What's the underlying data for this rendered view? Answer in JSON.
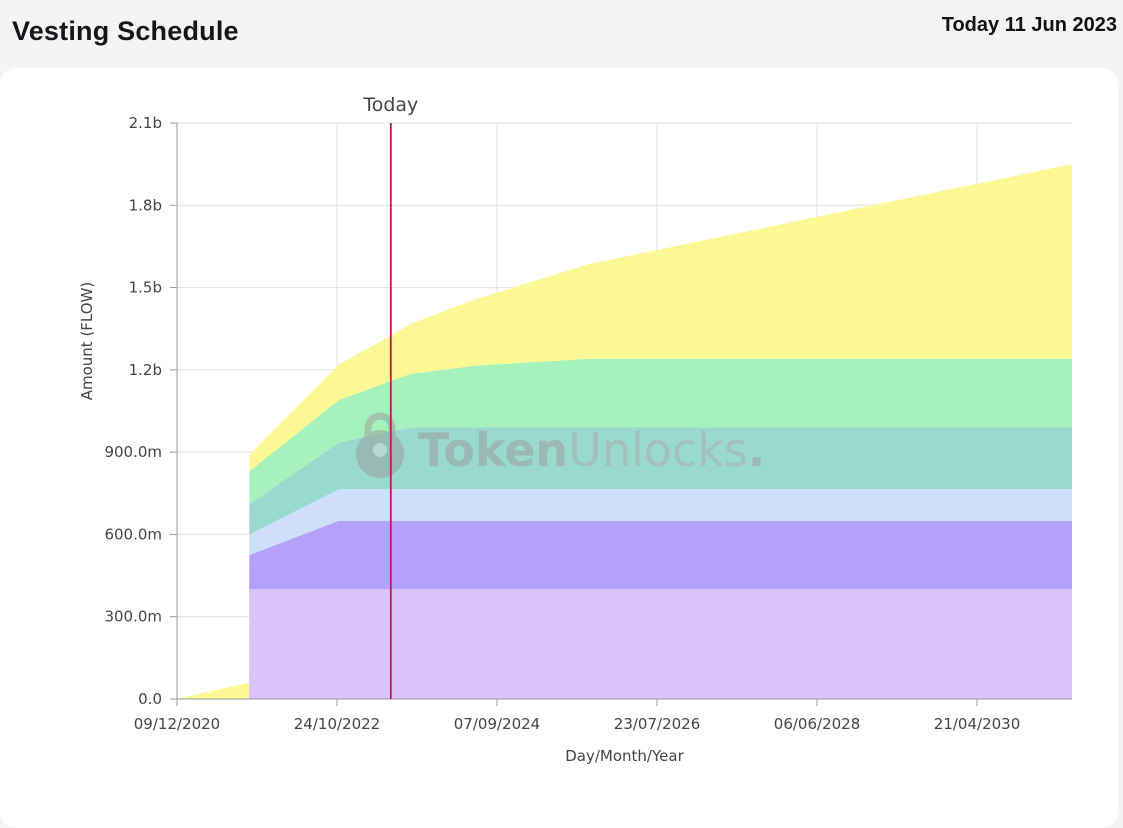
{
  "header": {
    "title": "Vesting Schedule",
    "today_text": "Today 11 Jun 2023"
  },
  "watermark": {
    "bold": "Token",
    "light": "Unlocks",
    "dot": ".",
    "icon": "lock-icon"
  },
  "chart_data": {
    "type": "area",
    "stacked": true,
    "title": "",
    "xlabel": "Day/Month/Year",
    "ylabel": "Amount (FLOW)",
    "ylim": [
      0,
      2100000000
    ],
    "yticks": [
      0,
      300000000,
      600000000,
      900000000,
      1200000000,
      1500000000,
      1800000000,
      2100000000
    ],
    "ytick_labels": [
      "0.0",
      "300.0m",
      "600.0m",
      "900.0m",
      "1.2b",
      "1.5b",
      "1.8b",
      "2.1b"
    ],
    "xlim": [
      "2020-12-09",
      "2031-06-01"
    ],
    "xticks": [
      "2020-12-09",
      "2022-10-24",
      "2024-09-07",
      "2026-07-23",
      "2028-06-06",
      "2030-04-21"
    ],
    "xtick_labels": [
      "09/12/2020",
      "24/10/2022",
      "07/09/2024",
      "23/07/2026",
      "06/06/2028",
      "21/04/2030"
    ],
    "grid": true,
    "legend": "none",
    "today_marker": {
      "date": "2023-06-11",
      "label": "Today",
      "color": "#c2185b"
    },
    "series": [
      {
        "color": "#dcc4fb",
        "points": [
          [
            "2020-12-09",
            0
          ],
          [
            "2021-10-13",
            0
          ],
          [
            "2021-10-14",
            400000000
          ],
          [
            "2031-06-01",
            400000000
          ]
        ]
      },
      {
        "color": "#b3a1fa",
        "points": [
          [
            "2020-12-09",
            0
          ],
          [
            "2021-10-13",
            0
          ],
          [
            "2021-10-14",
            125000000
          ],
          [
            "2022-11-01",
            250000000
          ],
          [
            "2031-06-01",
            250000000
          ]
        ]
      },
      {
        "color": "#cddffb",
        "points": [
          [
            "2020-12-09",
            0
          ],
          [
            "2021-10-13",
            0
          ],
          [
            "2021-10-14",
            75000000
          ],
          [
            "2022-11-01",
            115000000
          ],
          [
            "2031-06-01",
            115000000
          ]
        ]
      },
      {
        "color": "#9ad9cd",
        "points": [
          [
            "2020-12-09",
            0
          ],
          [
            "2021-10-13",
            0
          ],
          [
            "2021-10-14",
            110000000
          ],
          [
            "2022-11-01",
            170000000
          ],
          [
            "2023-09-01",
            225000000
          ],
          [
            "2031-06-01",
            225000000
          ]
        ]
      },
      {
        "color": "#a6f2bd",
        "points": [
          [
            "2020-12-09",
            0
          ],
          [
            "2021-10-13",
            0
          ],
          [
            "2021-10-14",
            120000000
          ],
          [
            "2022-11-01",
            155000000
          ],
          [
            "2023-09-01",
            195000000
          ],
          [
            "2024-06-01",
            225000000
          ],
          [
            "2025-10-01",
            250000000
          ],
          [
            "2031-06-01",
            250000000
          ]
        ]
      },
      {
        "color": "#fdf894",
        "points": [
          [
            "2020-12-09",
            0
          ],
          [
            "2021-10-13",
            60000000
          ],
          [
            "2021-10-14",
            60000000
          ],
          [
            "2022-11-01",
            130000000
          ],
          [
            "2023-06-11",
            165000000
          ],
          [
            "2024-06-01",
            240000000
          ],
          [
            "2025-10-01",
            345000000
          ],
          [
            "2031-06-01",
            710000000
          ]
        ]
      }
    ]
  }
}
